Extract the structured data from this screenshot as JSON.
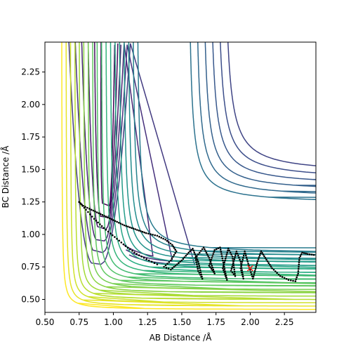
{
  "chart_data": {
    "type": "contour",
    "title": "",
    "xlabel": "AB Distance /Å",
    "ylabel": "BC Distance /Å",
    "xlim": [
      0.5,
      2.48
    ],
    "ylim": [
      0.4,
      2.48
    ],
    "xticks": [
      "0.50",
      "0.75",
      "1.00",
      "1.25",
      "1.50",
      "1.75",
      "2.00",
      "2.25"
    ],
    "yticks": [
      "0.50",
      "0.75",
      "1.00",
      "1.25",
      "1.50",
      "1.75",
      "2.00",
      "2.25"
    ],
    "grid": false,
    "colormap": "viridis",
    "contour_levels": 30,
    "trajectory": {
      "color": "#000000",
      "points": [
        [
          0.75,
          1.25
        ],
        [
          0.78,
          1.22
        ],
        [
          0.84,
          1.19
        ],
        [
          0.92,
          1.15
        ],
        [
          1.0,
          1.11
        ],
        [
          1.08,
          1.07
        ],
        [
          1.16,
          1.04
        ],
        [
          1.24,
          1.01
        ],
        [
          1.32,
          0.99
        ],
        [
          1.38,
          0.96
        ],
        [
          1.43,
          0.92
        ],
        [
          1.46,
          0.87
        ],
        [
          1.42,
          0.8
        ],
        [
          1.37,
          0.75
        ],
        [
          1.42,
          0.73
        ],
        [
          1.5,
          0.8
        ],
        [
          1.55,
          0.86
        ],
        [
          1.58,
          0.89
        ],
        [
          1.62,
          0.79
        ],
        [
          1.65,
          0.66
        ],
        [
          1.62,
          0.72
        ],
        [
          1.6,
          0.82
        ],
        [
          1.66,
          0.9
        ],
        [
          1.7,
          0.82
        ],
        [
          1.74,
          0.7
        ],
        [
          1.7,
          0.76
        ],
        [
          1.74,
          0.88
        ],
        [
          1.78,
          0.9
        ],
        [
          1.81,
          0.75
        ],
        [
          1.83,
          0.65
        ],
        [
          1.8,
          0.74
        ],
        [
          1.84,
          0.89
        ],
        [
          1.87,
          0.83
        ],
        [
          1.89,
          0.68
        ],
        [
          1.86,
          0.72
        ],
        [
          1.9,
          0.87
        ],
        [
          1.93,
          0.79
        ],
        [
          1.95,
          0.66
        ],
        [
          1.93,
          0.74
        ],
        [
          1.96,
          0.87
        ],
        [
          1.99,
          0.76
        ],
        [
          2.02,
          0.66
        ],
        [
          2.05,
          0.78
        ],
        [
          2.08,
          0.87
        ],
        [
          2.11,
          0.82
        ],
        [
          2.16,
          0.74
        ],
        [
          2.22,
          0.68
        ],
        [
          2.28,
          0.65
        ],
        [
          2.33,
          0.64
        ],
        [
          2.35,
          0.7
        ],
        [
          2.36,
          0.82
        ],
        [
          2.38,
          0.86
        ],
        [
          2.42,
          0.85
        ],
        [
          2.48,
          0.84
        ]
      ],
      "secondary_points": [
        [
          0.75,
          1.25
        ],
        [
          0.8,
          1.19
        ],
        [
          0.86,
          1.12
        ],
        [
          0.93,
          1.05
        ],
        [
          1.01,
          0.98
        ],
        [
          1.09,
          0.91
        ],
        [
          1.17,
          0.85
        ],
        [
          1.26,
          0.8
        ],
        [
          1.34,
          0.76
        ]
      ]
    },
    "marker": {
      "x": 2.0,
      "y": 0.74,
      "symbol": "x",
      "color": "#e8251a"
    }
  }
}
